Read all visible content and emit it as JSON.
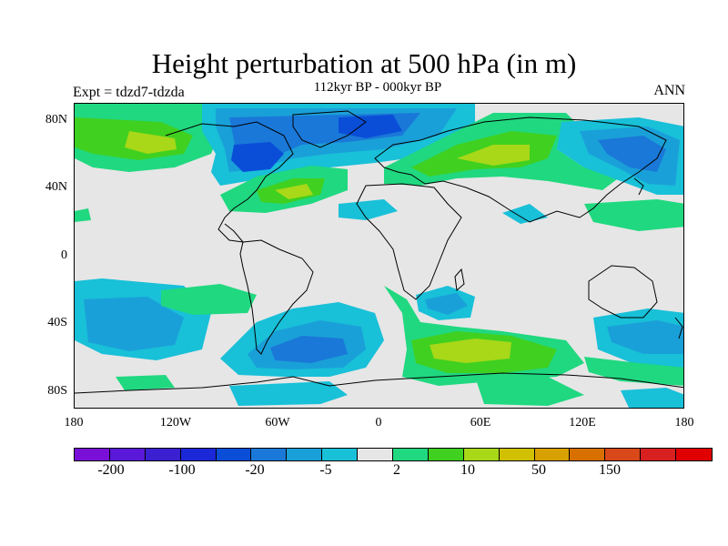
{
  "title": "Height perturbation at 500 hPa (in m)",
  "subtitle": "112kyr BP - 000kyr BP",
  "expt_label": "Expt = tdzd7-tdzda",
  "season": "ANN",
  "lat_labels": [
    "80N",
    "40N",
    "0",
    "40S",
    "80S"
  ],
  "lon_labels": [
    "180",
    "120W",
    "60W",
    "0",
    "60E",
    "120E",
    "180"
  ],
  "colorbar": {
    "colors": [
      "#7a10d8",
      "#5a18d8",
      "#3a20d0",
      "#1a28d8",
      "#0a4ed8",
      "#1a78d8",
      "#1aa0d8",
      "#18c0d8",
      "#e6e6e6",
      "#20d880",
      "#40d020",
      "#a8d818",
      "#d0c000",
      "#d8a000",
      "#d87000",
      "#d84818",
      "#d82020",
      "#e00000"
    ],
    "labels": [
      "-200",
      "-100",
      "-20",
      "-5",
      "2",
      "10",
      "50",
      "150"
    ]
  },
  "palette": {
    "background": "#e6e6e6",
    "neg_light": "#18c0d8",
    "neg_mid": "#1aa0d8",
    "neg_strong": "#1a78d8",
    "neg_deep": "#0a4ed8",
    "pos_light": "#20d880",
    "pos_mid": "#40d020",
    "pos_strong": "#a8d818"
  }
}
